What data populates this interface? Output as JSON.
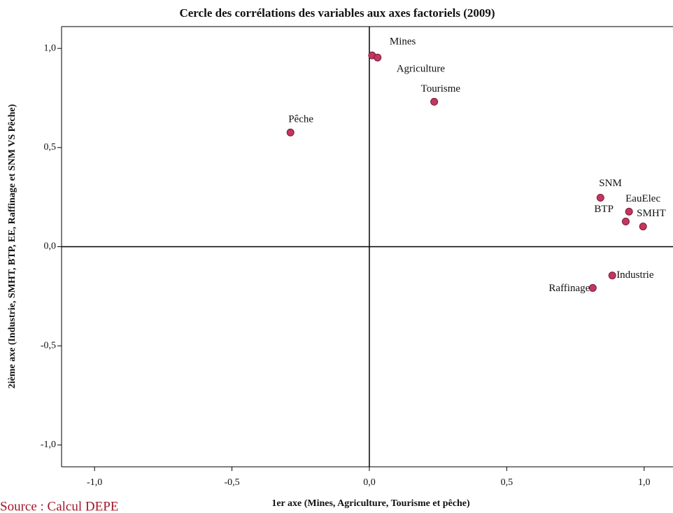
{
  "chart_data": {
    "type": "scatter",
    "title": "Cercle des corrélations des variables aux axes factoriels (2009)",
    "x_label": "1er axe (Mines, Agriculture, Tourisme et pêche)",
    "y_label": "2ième axe (Industrie, SMHT, BTP, EE, Raffinage et SNM VS Pêche)",
    "source": "Source : Calcul DEPE",
    "labels": [
      "Mines",
      "Agriculture",
      "Tourisme",
      "Pêche",
      "SNM",
      "EauElec",
      "BTP",
      "SMHT",
      "Industrie",
      "Raffinage"
    ],
    "x": [
      0.01,
      0.03,
      0.236,
      -0.287,
      0.841,
      0.945,
      0.933,
      0.996,
      0.884,
      0.813
    ],
    "values": [
      0.965,
      0.954,
      0.731,
      0.576,
      0.247,
      0.177,
      0.127,
      0.102,
      -0.145,
      -0.208
    ],
    "color": "#c2375e",
    "xlim": [
      -1.12,
      1.105
    ],
    "ylim": [
      -1.11,
      1.11
    ],
    "xticks": [
      {
        "value": -1,
        "label": "-1,0"
      },
      {
        "value": -0.5,
        "label": "-0,5"
      },
      {
        "value": 0,
        "label": "0,0"
      },
      {
        "value": 0.5,
        "label": "0,5"
      },
      {
        "value": 1,
        "label": "1,0"
      }
    ],
    "yticks": [
      {
        "value": -1,
        "label": "-1,0"
      },
      {
        "value": -0.5,
        "label": "-0,5"
      },
      {
        "value": 0,
        "label": "0,0"
      },
      {
        "value": 0.5,
        "label": "0,5"
      },
      {
        "value": 1,
        "label": "1,0"
      }
    ]
  }
}
